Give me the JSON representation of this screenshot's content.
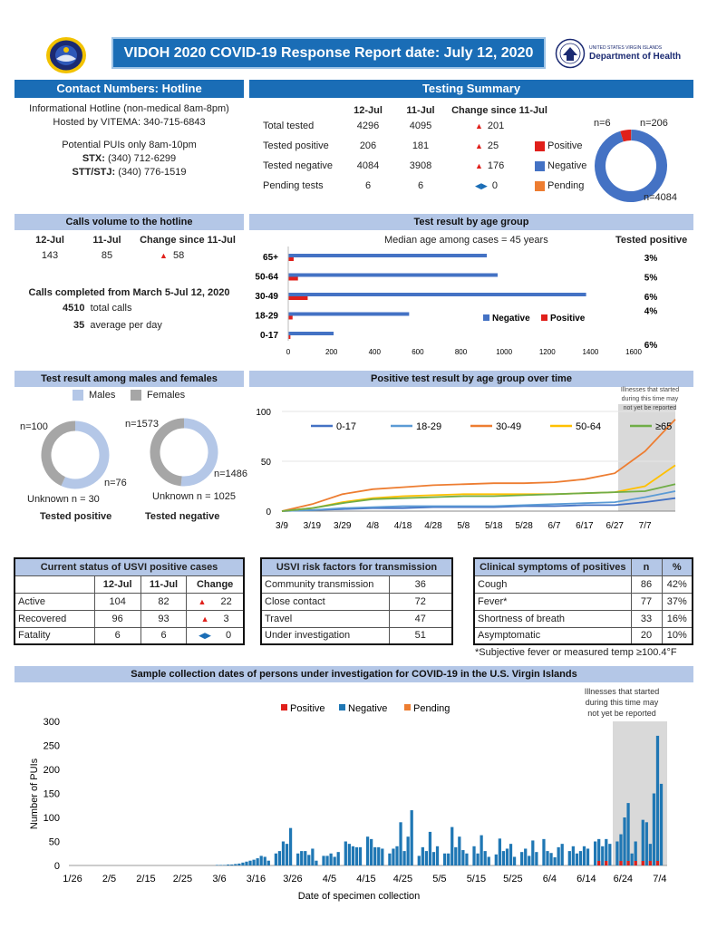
{
  "header": {
    "title": "VIDOH 2020 COVID-19 Response Report date: July 12, 2020",
    "doh_small": "UNITED STATES VIRGIN ISLANDS",
    "doh_name": "Department of Health"
  },
  "contact": {
    "title": "Contact Numbers: Hotline",
    "line1": "Informational Hotline (non-medical 8am-8pm)",
    "line2": "Hosted by VITEMA: 340-715-6843",
    "line3": "Potential PUIs only 8am-10pm",
    "stx_label": "STX:",
    "stx_num": " (340) 712-6299",
    "stt_label": "STT/STJ:",
    "stt_num": " (340) 776-1519"
  },
  "testing": {
    "title": "Testing Summary",
    "col1": "12-Jul",
    "col2": "11-Jul",
    "col3": "Change since 11-Jul",
    "rows": [
      {
        "label": "Total tested",
        "a": "4296",
        "b": "4095",
        "c": "201",
        "dir": "up"
      },
      {
        "label": "Tested positive",
        "a": "206",
        "b": "181",
        "c": "25",
        "dir": "up"
      },
      {
        "label": "Tested negative",
        "a": "4084",
        "b": "3908",
        "c": "176",
        "dir": "up"
      },
      {
        "label": "Pending tests",
        "a": "6",
        "b": "6",
        "c": "0",
        "dir": "same"
      }
    ],
    "legend": [
      {
        "label": "Positive",
        "color": "#e0201b"
      },
      {
        "label": "Negative",
        "color": "#4472c4"
      },
      {
        "label": "Pending",
        "color": "#ed7d31"
      }
    ],
    "donut_labels": {
      "pending": "n=6",
      "positive": "n=206",
      "negative": "n=4084"
    },
    "donut_values": {
      "positive": 206,
      "negative": 4084,
      "pending": 6
    }
  },
  "calls": {
    "title": "Calls volume to the hotline",
    "col1": "12-Jul",
    "col2": "11-Jul",
    "col3": "Change since 11-Jul",
    "v1": "143",
    "v2": "85",
    "v3": "58",
    "completed": "Calls completed from March 5-Jul 12, 2020",
    "total_num": "4510",
    "total_text": "total calls",
    "avg_num": "35",
    "avg_text": "average per day"
  },
  "age": {
    "title": "Test result by age group",
    "median": "Median age among cases = 45 years",
    "tested_positive_header": "Tested positive",
    "legend_neg": "Negative",
    "legend_pos": "Positive"
  },
  "sex": {
    "title": "Test result among males and females",
    "legend_m": "Males",
    "legend_f": "Females",
    "pos_f": "n=100",
    "pos_m": "n=76",
    "pos_unknown": "Unknown n = 30",
    "pos_caption": "Tested positive",
    "neg_f": "n=1573",
    "neg_m": "n=1486",
    "neg_unknown": "Unknown n = 1025",
    "neg_caption": "Tested negative"
  },
  "trend": {
    "title": "Positive test result by age group over time",
    "note1": "Illnesses that started",
    "note2": "during this time may",
    "note3": "not yet be reported"
  },
  "status": {
    "title": "Current status of USVI positive cases",
    "col1": "12-Jul",
    "col2": "11-Jul",
    "col3": "Change",
    "rows": [
      {
        "label": "Active",
        "a": "104",
        "b": "82",
        "c": "22",
        "dir": "up"
      },
      {
        "label": "Recovered",
        "a": "96",
        "b": "93",
        "c": "3",
        "dir": "up"
      },
      {
        "label": "Fatality",
        "a": "6",
        "b": "6",
        "c": "0",
        "dir": "same"
      }
    ]
  },
  "risk": {
    "title": "USVI risk factors for transmission",
    "rows": [
      {
        "label": "Community transmission",
        "v": "36"
      },
      {
        "label": "Close contact",
        "v": "72"
      },
      {
        "label": "Travel",
        "v": "47"
      },
      {
        "label": "Under investigation",
        "v": "51"
      }
    ]
  },
  "symptoms": {
    "title": "Clinical symptoms of positives",
    "col_n": "n",
    "col_pct": "%",
    "rows": [
      {
        "label": "Cough",
        "n": "86",
        "p": "42%"
      },
      {
        "label": "Fever*",
        "n": "77",
        "p": "37%"
      },
      {
        "label": "Shortness of breath",
        "n": "33",
        "p": "16%"
      },
      {
        "label": "Asymptomatic",
        "n": "20",
        "p": "10%"
      }
    ],
    "footnote": "*Subjective fever or measured temp ≥100.4°F"
  },
  "collection": {
    "title": "Sample collection dates of persons under investigation for COVID-19 in the U.S. Virgin Islands",
    "note1": "Illnesses that started",
    "note2": "during this time may",
    "note3": "not yet be reported"
  },
  "chart_data": [
    {
      "type": "bar",
      "title": "Test result by age group",
      "orientation": "horizontal",
      "categories": [
        "65+",
        "50-64",
        "30-49",
        "18-29",
        "0-17"
      ],
      "series": [
        {
          "name": "Negative",
          "color": "#4472c4",
          "values": [
            920,
            970,
            1380,
            560,
            210
          ]
        },
        {
          "name": "Positive",
          "color": "#e0201b",
          "values": [
            25,
            45,
            90,
            20,
            10
          ]
        }
      ],
      "tested_positive_pct": [
        "3%",
        "5%",
        "6%",
        "4%",
        "6%"
      ],
      "xticks": [
        "0",
        "200",
        "400",
        "600",
        "800",
        "1000",
        "1200",
        "1400",
        "1600"
      ],
      "xlim": [
        0,
        1600
      ]
    },
    {
      "type": "pie",
      "title": "Tested positive",
      "series": [
        {
          "name": "Females",
          "color": "#b4c7e7",
          "value": 100
        },
        {
          "name": "Males",
          "color": "#a6a6a6",
          "value": 76
        }
      ]
    },
    {
      "type": "pie",
      "title": "Tested negative",
      "series": [
        {
          "name": "Females",
          "color": "#b4c7e7",
          "value": 1573
        },
        {
          "name": "Males",
          "color": "#a6a6a6",
          "value": 1486
        }
      ]
    },
    {
      "type": "line",
      "title": "Positive test result by age group over time",
      "x": [
        "3/9",
        "3/19",
        "3/29",
        "4/8",
        "4/18",
        "4/28",
        "5/8",
        "5/18",
        "5/28",
        "6/7",
        "6/17",
        "6/27",
        "7/7",
        "7/12"
      ],
      "ylim": [
        0,
        100
      ],
      "yticks": [
        "0",
        "50",
        "100"
      ],
      "xticks": [
        "3/9",
        "3/19",
        "3/29",
        "4/8",
        "4/18",
        "4/28",
        "5/8",
        "5/18",
        "5/28",
        "6/7",
        "6/17",
        "6/27",
        "7/7"
      ],
      "series": [
        {
          "name": "0-17",
          "color": "#4472c4",
          "values": [
            0,
            1,
            2,
            3,
            3,
            4,
            4,
            4,
            5,
            5,
            6,
            6,
            9,
            13
          ]
        },
        {
          "name": "18-29",
          "color": "#5b9bd5",
          "values": [
            0,
            1,
            3,
            4,
            5,
            5,
            5,
            5,
            6,
            7,
            8,
            9,
            14,
            20
          ]
        },
        {
          "name": "30-49",
          "color": "#ed7d31",
          "values": [
            0,
            7,
            17,
            22,
            24,
            26,
            27,
            28,
            28,
            29,
            32,
            38,
            60,
            92
          ]
        },
        {
          "name": "50-64",
          "color": "#ffc000",
          "values": [
            0,
            3,
            9,
            13,
            15,
            16,
            17,
            17,
            17,
            17,
            18,
            19,
            25,
            46
          ]
        },
        {
          "name": "≥65",
          "color": "#70ad47",
          "values": [
            0,
            3,
            8,
            12,
            13,
            14,
            15,
            15,
            16,
            17,
            18,
            19,
            20,
            27
          ]
        }
      ]
    },
    {
      "type": "bar",
      "title": "Sample collection dates of persons under investigation for COVID-19 in the U.S. Virgin Islands",
      "stacked": true,
      "xlabel": "Date of specimen collection",
      "ylabel": "Number of PUIs",
      "ylim": [
        0,
        300
      ],
      "yticks": [
        "0",
        "50",
        "100",
        "150",
        "200",
        "250",
        "300"
      ],
      "xticks": [
        "1/26",
        "2/5",
        "2/15",
        "2/25",
        "3/6",
        "3/16",
        "3/26",
        "4/5",
        "4/15",
        "4/25",
        "5/5",
        "5/15",
        "5/25",
        "6/4",
        "6/14",
        "6/24",
        "7/4"
      ],
      "legend": [
        {
          "name": "Positive",
          "color": "#e0201b"
        },
        {
          "name": "Negative",
          "color": "#1f77b4"
        },
        {
          "name": "Pending",
          "color": "#ed7d31"
        }
      ],
      "negative_daily": [
        0,
        0,
        0,
        0,
        0,
        0,
        0,
        0,
        0,
        0,
        0,
        0,
        0,
        0,
        0,
        0,
        0,
        0,
        0,
        0,
        0,
        0,
        0,
        0,
        0,
        0,
        0,
        0,
        0,
        0,
        0,
        0,
        0,
        0,
        0,
        0,
        0,
        0,
        0,
        0,
        1,
        1,
        1,
        2,
        2,
        3,
        4,
        6,
        8,
        10,
        12,
        15,
        20,
        18,
        10,
        0,
        25,
        30,
        50,
        45,
        78,
        0,
        25,
        30,
        30,
        22,
        35,
        10,
        0,
        20,
        20,
        25,
        18,
        28,
        0,
        50,
        45,
        40,
        38,
        38,
        0,
        60,
        55,
        38,
        38,
        35,
        0,
        25,
        35,
        40,
        90,
        30,
        60,
        115,
        0,
        20,
        38,
        30,
        70,
        28,
        40,
        0,
        25,
        25,
        80,
        38,
        60,
        32,
        25,
        0,
        40,
        25,
        63,
        30,
        18,
        0,
        23,
        56,
        30,
        35,
        45,
        18,
        0,
        28,
        35,
        20,
        52,
        28,
        0,
        55,
        30,
        26,
        17,
        38,
        45,
        0,
        30,
        40,
        25,
        30,
        40,
        35,
        0,
        50,
        55,
        40,
        55,
        45,
        0,
        50,
        65,
        100,
        130,
        25,
        50,
        0,
        95,
        90,
        45,
        150,
        270,
        170,
        0
      ]
    }
  ]
}
